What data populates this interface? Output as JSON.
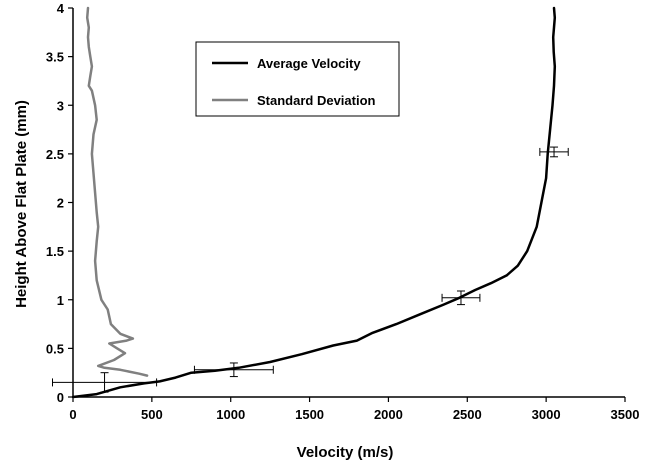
{
  "chart_data": {
    "type": "line",
    "title": "",
    "xlabel": "Velocity (m/s)",
    "ylabel": "Height Above Flat Plate (mm)",
    "xlim": [
      0,
      3500
    ],
    "ylim": [
      0,
      4
    ],
    "x_ticks": [
      "0",
      "500",
      "1000",
      "1500",
      "2000",
      "2500",
      "3000",
      "3500"
    ],
    "y_ticks": [
      "0",
      "0.5",
      "1",
      "1.5",
      "2",
      "2.5",
      "3",
      "3.5",
      "4"
    ],
    "grid": false,
    "legend": {
      "position": "top-center",
      "entries": [
        "Average Velocity",
        "Standard Deviation"
      ]
    },
    "series": [
      {
        "name": "Average Velocity",
        "color": "#000000",
        "x": [
          0,
          150,
          300,
          450,
          550,
          650,
          750,
          900,
          1050,
          1250,
          1450,
          1650,
          1800,
          1900,
          2050,
          2200,
          2350,
          2450,
          2550,
          2650,
          2750,
          2820,
          2880,
          2940,
          2970,
          3000,
          3010,
          3025,
          3040,
          3050,
          3055,
          3048,
          3045,
          3050,
          3055,
          3050
        ],
        "y": [
          0.0,
          0.03,
          0.1,
          0.14,
          0.16,
          0.2,
          0.25,
          0.27,
          0.3,
          0.36,
          0.44,
          0.53,
          0.58,
          0.66,
          0.75,
          0.85,
          0.95,
          1.02,
          1.1,
          1.17,
          1.25,
          1.35,
          1.5,
          1.75,
          2.0,
          2.25,
          2.5,
          2.75,
          3.0,
          3.2,
          3.4,
          3.55,
          3.7,
          3.8,
          3.9,
          4.0
        ]
      },
      {
        "name": "Standard Deviation",
        "color": "#808080",
        "x": [
          470,
          420,
          300,
          200,
          160,
          260,
          330,
          280,
          230,
          340,
          380,
          300,
          240,
          220,
          180,
          150,
          140,
          150,
          160,
          150,
          140,
          130,
          120,
          130,
          150,
          140,
          120,
          100,
          110,
          120,
          110,
          100,
          95,
          100,
          90,
          95
        ],
        "y": [
          0.22,
          0.24,
          0.28,
          0.3,
          0.32,
          0.38,
          0.45,
          0.5,
          0.55,
          0.58,
          0.6,
          0.65,
          0.75,
          0.9,
          1.0,
          1.2,
          1.4,
          1.6,
          1.75,
          1.9,
          2.1,
          2.3,
          2.5,
          2.7,
          2.85,
          3.0,
          3.15,
          3.2,
          3.3,
          3.4,
          3.5,
          3.6,
          3.7,
          3.8,
          3.9,
          4.0
        ]
      }
    ],
    "error_bars": [
      {
        "x": 200,
        "y": 0.15,
        "x_err": 330,
        "y_err": 0.1
      },
      {
        "x": 1020,
        "y": 0.28,
        "x_err": 250,
        "y_err": 0.07
      },
      {
        "x": 2460,
        "y": 1.02,
        "x_err": 120,
        "y_err": 0.07
      },
      {
        "x": 3050,
        "y": 2.52,
        "x_err": 90,
        "y_err": 0.05
      }
    ]
  }
}
